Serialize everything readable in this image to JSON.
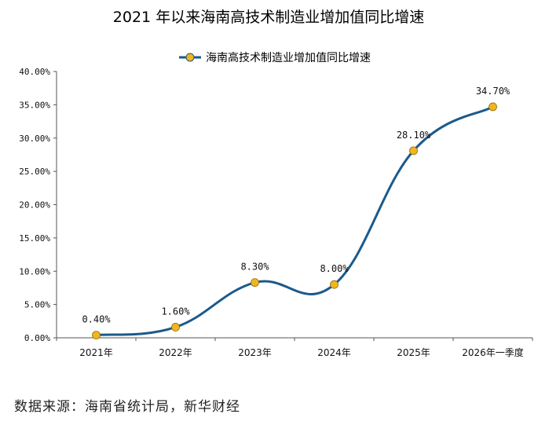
{
  "chart_data": {
    "type": "line",
    "title": "2021 年以来海南高技术制造业增加值同比增速",
    "categories": [
      "2021年",
      "2022年",
      "2023年",
      "2024年",
      "2025年",
      "2026年一季度"
    ],
    "series": [
      {
        "name": "海南高技术制造业增加值同比增速",
        "values": [
          0.4,
          1.6,
          8.3,
          8.0,
          28.1,
          34.7
        ],
        "labels": [
          "0.40%",
          "1.60%",
          "8.30%",
          "8.00%",
          "28.10%",
          "34.70%"
        ],
        "color": "#1a5a8c",
        "marker_color": "#f2b51d"
      }
    ],
    "ylim": [
      0,
      40
    ],
    "yticks": [
      "0.00%",
      "5.00%",
      "10.00%",
      "15.00%",
      "20.00%",
      "25.00%",
      "30.00%",
      "35.00%",
      "40.00%"
    ],
    "legend_position": "top",
    "grid": false,
    "smooth": true
  },
  "source": "数据来源：海南省统计局，新华财经"
}
